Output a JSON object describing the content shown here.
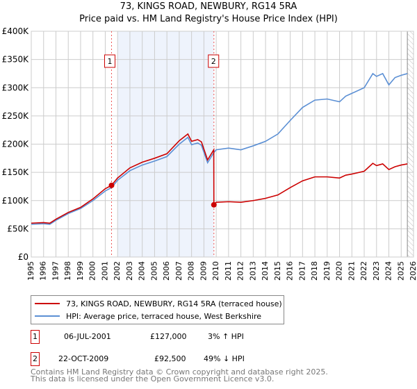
{
  "title": "73, KINGS ROAD, NEWBURY, RG14 5RA",
  "subtitle": "Price paid vs. HM Land Registry's House Price Index (HPI)",
  "chart_data": {
    "type": "line",
    "xlim": [
      1995,
      2026
    ],
    "ylim": [
      0,
      400000
    ],
    "yticks": [
      0,
      50000,
      100000,
      150000,
      200000,
      250000,
      300000,
      350000,
      400000
    ],
    "ytick_labels": [
      "£0",
      "£50K",
      "£100K",
      "£150K",
      "£200K",
      "£250K",
      "£300K",
      "£350K",
      "£400K"
    ],
    "xticks": [
      1995,
      1996,
      1997,
      1998,
      1999,
      2000,
      2001,
      2002,
      2003,
      2004,
      2005,
      2006,
      2007,
      2008,
      2009,
      2010,
      2011,
      2012,
      2013,
      2014,
      2015,
      2016,
      2017,
      2018,
      2019,
      2020,
      2021,
      2022,
      2023,
      2024,
      2025,
      2026
    ],
    "shaded_period": [
      2002,
      2009.8
    ],
    "forecast_hatch_from": 2025.5,
    "colors": {
      "price": "#cc0000",
      "hpi": "#5b8fd4",
      "shade": "#eef3fc",
      "grid": "#cccccc"
    },
    "series": [
      {
        "name": "73, KINGS ROAD, NEWBURY, RG14 5RA (terraced house)",
        "color": "#cc0000",
        "x": [
          1995,
          1996,
          1996.5,
          1997,
          1998,
          1999,
          2000,
          2001,
          2001.51,
          2002,
          2003,
          2004,
          2005,
          2006,
          2007,
          2007.7,
          2008,
          2008.5,
          2008.8,
          2009.3,
          2009.8,
          2009.81,
          2010,
          2011,
          2012,
          2013,
          2014,
          2015,
          2016,
          2017,
          2018,
          2019,
          2020,
          2020.5,
          2021,
          2022,
          2022.7,
          2023,
          2023.5,
          2024,
          2024.5,
          2025,
          2025.5
        ],
        "y": [
          60000,
          61000,
          60000,
          67000,
          79000,
          88000,
          103000,
          121000,
          127000,
          140000,
          158000,
          168000,
          175000,
          183000,
          206000,
          218000,
          205000,
          208000,
          204000,
          172000,
          190000,
          92500,
          97000,
          98000,
          97000,
          100000,
          104000,
          110000,
          123000,
          135000,
          142000,
          142000,
          140000,
          145000,
          147000,
          152000,
          166000,
          162000,
          165000,
          155000,
          160000,
          163000,
          165000
        ]
      },
      {
        "name": "HPI: Average price, terraced house, West Berkshire",
        "color": "#5b8fd4",
        "x": [
          1995,
          1996,
          1996.5,
          1997,
          1998,
          1999,
          2000,
          2001,
          2001.51,
          2002,
          2003,
          2004,
          2005,
          2006,
          2007,
          2007.7,
          2008,
          2008.5,
          2008.8,
          2009.3,
          2009.8,
          2010,
          2011,
          2012,
          2013,
          2014,
          2015,
          2016,
          2017,
          2018,
          2019,
          2020,
          2020.5,
          2021,
          2022,
          2022.7,
          2023,
          2023.5,
          2024,
          2024.5,
          2025,
          2025.5
        ],
        "y": [
          58000,
          59000,
          58000,
          65000,
          77000,
          86000,
          100000,
          117000,
          123000,
          136000,
          153000,
          163000,
          170000,
          178000,
          200000,
          212000,
          199000,
          202000,
          198000,
          167000,
          185000,
          190000,
          193000,
          190000,
          197000,
          205000,
          218000,
          242000,
          265000,
          278000,
          280000,
          275000,
          285000,
          290000,
          300000,
          325000,
          320000,
          325000,
          305000,
          318000,
          322000,
          325000
        ]
      }
    ],
    "annotations": [
      {
        "label": "1",
        "x": 2001.51,
        "y": 127000
      },
      {
        "label": "2",
        "x": 2009.81,
        "y": 92500
      }
    ]
  },
  "legend": {
    "price": "73, KINGS ROAD, NEWBURY, RG14 5RA (terraced house)",
    "hpi": "HPI: Average price, terraced house, West Berkshire"
  },
  "sales": [
    {
      "num": "1",
      "date": "06-JUL-2001",
      "price": "£127,000",
      "hpi": "3% ↑ HPI"
    },
    {
      "num": "2",
      "date": "22-OCT-2009",
      "price": "£92,500",
      "hpi": "49% ↓ HPI"
    }
  ],
  "footer": {
    "line1": "Contains HM Land Registry data © Crown copyright and database right 2025.",
    "line2": "This data is licensed under the Open Government Licence v3.0."
  }
}
